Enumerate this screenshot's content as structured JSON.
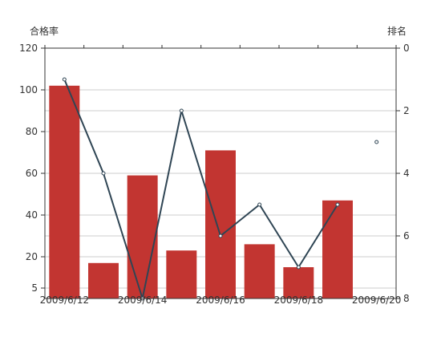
{
  "chart_data": {
    "type": "bar",
    "left_axis_label": "合格率",
    "right_axis_label": "排名",
    "x": [
      "2009/6/12",
      "2009/6/13",
      "2009/6/14",
      "2009/6/15",
      "2009/6/16",
      "2009/6/17",
      "2009/6/18",
      "2009/6/19",
      "2009/6/20"
    ],
    "x_tick_labels": [
      "2009/6/12",
      "2009/6/14",
      "2009/6/16",
      "2009/6/18",
      "2009/6/20"
    ],
    "left_ticks": [
      5,
      20,
      40,
      60,
      80,
      100,
      120
    ],
    "right_ticks": [
      0,
      2,
      4,
      6,
      8
    ],
    "ylim_left": [
      0,
      120
    ],
    "ylim_right": [
      0,
      8
    ],
    "right_axis_inverted": true,
    "grid": true,
    "series": [
      {
        "type": "bar",
        "axis": "left",
        "color": "#c23531",
        "values": [
          102,
          17,
          59,
          23,
          71,
          26,
          15,
          47,
          null
        ]
      },
      {
        "type": "line",
        "axis": "right",
        "color": "#2f4554",
        "values": [
          1,
          4,
          8,
          2,
          6,
          5,
          7,
          5,
          3
        ]
      }
    ]
  }
}
